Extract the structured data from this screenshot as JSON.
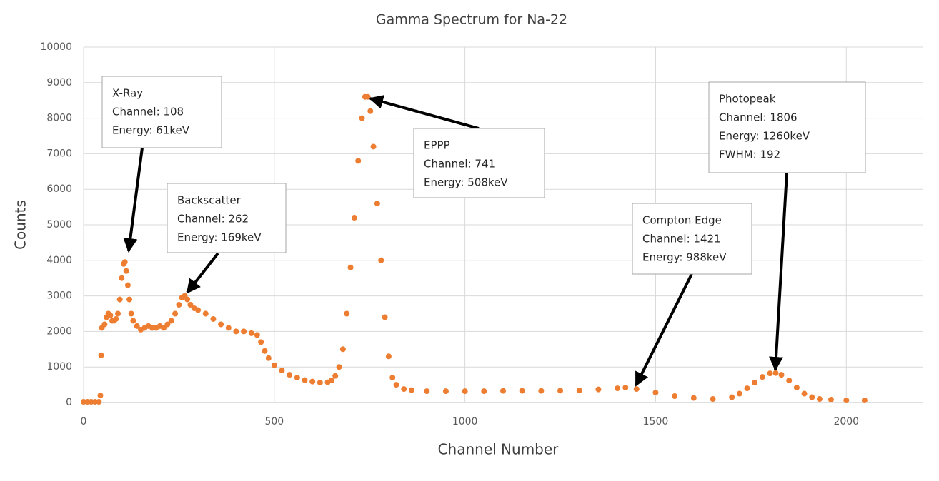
{
  "chart_data": {
    "type": "scatter",
    "title": "Gamma Spectrum for Na-22",
    "x_label": "Channel Number",
    "y_label": "Counts",
    "xlim": [
      0,
      2200
    ],
    "xticks": [
      0,
      500,
      1000,
      1500,
      2000
    ],
    "ylim": [
      0,
      10000
    ],
    "yticks": [
      0,
      1000,
      2000,
      3000,
      4000,
      5000,
      6000,
      7000,
      8000,
      9000,
      10000
    ],
    "grid": true,
    "series": [
      {
        "color": "#ed7d31",
        "x": [
          0,
          10,
          20,
          30,
          40,
          44,
          46,
          48,
          55,
          60,
          65,
          70,
          75,
          80,
          85,
          90,
          95,
          100,
          105,
          108,
          112,
          116,
          120,
          125,
          130,
          140,
          150,
          160,
          170,
          180,
          190,
          200,
          210,
          220,
          230,
          240,
          250,
          258,
          265,
          272,
          280,
          290,
          300,
          320,
          340,
          360,
          380,
          400,
          420,
          440,
          455,
          465,
          475,
          485,
          500,
          520,
          540,
          560,
          580,
          600,
          620,
          640,
          650,
          660,
          670,
          680,
          690,
          700,
          710,
          720,
          730,
          738,
          745,
          752,
          760,
          770,
          780,
          790,
          800,
          810,
          820,
          840,
          860,
          900,
          950,
          1000,
          1050,
          1100,
          1150,
          1200,
          1250,
          1300,
          1350,
          1400,
          1421,
          1450,
          1500,
          1550,
          1600,
          1650,
          1700,
          1720,
          1740,
          1760,
          1780,
          1800,
          1815,
          1830,
          1850,
          1870,
          1890,
          1910,
          1930,
          1960,
          2000,
          2048
        ],
        "values": [
          20,
          20,
          20,
          20,
          20,
          200,
          1330,
          2100,
          2200,
          2400,
          2500,
          2450,
          2300,
          2300,
          2350,
          2500,
          2900,
          3500,
          3900,
          3950,
          3700,
          3300,
          2900,
          2500,
          2300,
          2150,
          2050,
          2100,
          2150,
          2100,
          2100,
          2150,
          2100,
          2200,
          2300,
          2500,
          2750,
          2950,
          3000,
          2900,
          2750,
          2650,
          2600,
          2500,
          2350,
          2200,
          2100,
          2000,
          2000,
          1950,
          1900,
          1700,
          1450,
          1250,
          1050,
          900,
          780,
          700,
          630,
          590,
          560,
          570,
          620,
          750,
          1000,
          1500,
          2500,
          3800,
          5200,
          6800,
          8000,
          8600,
          8600,
          8200,
          7200,
          5600,
          4000,
          2400,
          1300,
          700,
          500,
          380,
          350,
          320,
          320,
          320,
          320,
          330,
          330,
          330,
          335,
          340,
          370,
          400,
          420,
          380,
          280,
          180,
          130,
          100,
          150,
          250,
          400,
          560,
          720,
          820,
          830,
          780,
          620,
          420,
          250,
          150,
          100,
          80,
          60,
          60
        ]
      }
    ],
    "annotations": [
      {
        "lines": [
          "X-Ray",
          "Channel: 108",
          "Energy: 61keV"
        ]
      },
      {
        "lines": [
          "Backscatter",
          "Channel: 262",
          "Energy: 169keV"
        ]
      },
      {
        "lines": [
          "EPPP",
          "Channel: 741",
          "Energy: 508keV"
        ]
      },
      {
        "lines": [
          "Photopeak",
          "Channel: 1806",
          "Energy: 1260keV",
          "FWHM: 192"
        ]
      },
      {
        "lines": [
          "Compton Edge",
          "Channel: 1421",
          "Energy: 988keV"
        ]
      }
    ]
  }
}
